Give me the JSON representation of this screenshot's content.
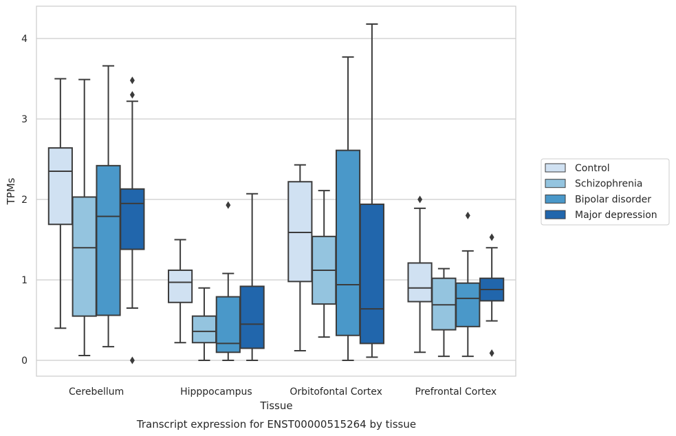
{
  "chart_data": {
    "type": "box",
    "title": "",
    "caption": "Transcript expression for ENST00000515264 by tissue",
    "xlabel": "Tissue",
    "ylabel": "TPMs",
    "ylim": [
      -0.2,
      4.4
    ],
    "yticks": [
      0,
      1,
      2,
      3,
      4
    ],
    "grid": "horizontal",
    "legend_position": "right",
    "categories": [
      "Cerebellum",
      "Hipppocampus",
      "Orbitofontal Cortex",
      "Prefrontal Cortex"
    ],
    "series": [
      {
        "name": "Control",
        "color": "#d0e1f2",
        "boxes": [
          {
            "whislo": 0.4,
            "q1": 1.69,
            "med": 2.35,
            "q3": 2.64,
            "whishi": 3.5,
            "fliers": []
          },
          {
            "whislo": 0.22,
            "q1": 0.72,
            "med": 0.97,
            "q3": 1.12,
            "whishi": 1.5,
            "fliers": []
          },
          {
            "whislo": 0.12,
            "q1": 0.98,
            "med": 1.59,
            "q3": 2.22,
            "whishi": 2.43,
            "fliers": []
          },
          {
            "whislo": 0.1,
            "q1": 0.73,
            "med": 0.9,
            "q3": 1.21,
            "whishi": 1.89,
            "fliers": [
              2.0
            ]
          }
        ]
      },
      {
        "name": "Schizophrenia",
        "color": "#94c4df",
        "boxes": [
          {
            "whislo": 0.06,
            "q1": 0.55,
            "med": 1.4,
            "q3": 2.03,
            "whishi": 3.49,
            "fliers": []
          },
          {
            "whislo": 0.0,
            "q1": 0.22,
            "med": 0.36,
            "q3": 0.55,
            "whishi": 0.9,
            "fliers": []
          },
          {
            "whislo": 0.29,
            "q1": 0.7,
            "med": 1.12,
            "q3": 1.54,
            "whishi": 2.11,
            "fliers": []
          },
          {
            "whislo": 0.05,
            "q1": 0.38,
            "med": 0.69,
            "q3": 1.02,
            "whishi": 1.14,
            "fliers": []
          }
        ]
      },
      {
        "name": "Bipolar disorder",
        "color": "#4a98c9",
        "boxes": [
          {
            "whislo": 0.17,
            "q1": 0.56,
            "med": 1.79,
            "q3": 2.42,
            "whishi": 3.66,
            "fliers": []
          },
          {
            "whislo": 0.0,
            "q1": 0.1,
            "med": 0.21,
            "q3": 0.79,
            "whishi": 1.08,
            "fliers": [
              1.93
            ]
          },
          {
            "whislo": 0.0,
            "q1": 0.31,
            "med": 0.94,
            "q3": 2.61,
            "whishi": 3.77,
            "fliers": []
          },
          {
            "whislo": 0.05,
            "q1": 0.42,
            "med": 0.77,
            "q3": 0.96,
            "whishi": 1.36,
            "fliers": [
              1.8
            ]
          }
        ]
      },
      {
        "name": "Major depression",
        "color": "#2166ac",
        "boxes": [
          {
            "whislo": 0.65,
            "q1": 1.38,
            "med": 1.95,
            "q3": 2.13,
            "whishi": 3.22,
            "fliers": [
              3.48,
              3.3,
              0.0
            ]
          },
          {
            "whislo": 0.0,
            "q1": 0.15,
            "med": 0.45,
            "q3": 0.92,
            "whishi": 2.07,
            "fliers": []
          },
          {
            "whislo": 0.04,
            "q1": 0.21,
            "med": 0.64,
            "q3": 1.94,
            "whishi": 4.18,
            "fliers": []
          },
          {
            "whislo": 0.49,
            "q1": 0.74,
            "med": 0.88,
            "q3": 1.02,
            "whishi": 1.4,
            "fliers": [
              1.53,
              0.09
            ]
          }
        ]
      }
    ]
  }
}
